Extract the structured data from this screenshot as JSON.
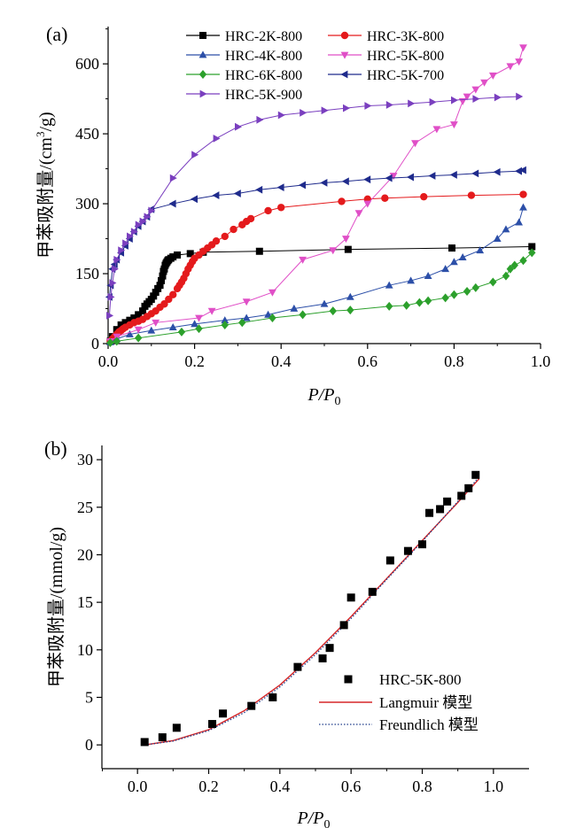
{
  "chart_data": [
    {
      "panel_label": "(a)",
      "type": "scatter",
      "xlabel_main": "P/P",
      "xlabel_sub": "0",
      "ylabel_main": "甲苯吸附量/(cm",
      "ylabel_sup": "3",
      "ylabel_end": "/g)",
      "xlim": [
        0,
        1.0
      ],
      "ylim": [
        0,
        680
      ],
      "xticks": [
        0.0,
        0.2,
        0.4,
        0.6,
        0.8,
        1.0
      ],
      "xtick_labels": [
        "0.0",
        "0.2",
        "0.4",
        "0.6",
        "0.8",
        "1.0"
      ],
      "yticks": [
        0,
        150,
        300,
        450,
        600
      ],
      "ytick_labels": [
        "0",
        "150",
        "300",
        "450",
        "600"
      ],
      "series": [
        {
          "name": "HRC-2K-800",
          "color": "#000000",
          "marker": "square",
          "x": [
            0.005,
            0.01,
            0.02,
            0.03,
            0.04,
            0.05,
            0.06,
            0.07,
            0.08,
            0.085,
            0.09,
            0.095,
            0.1,
            0.105,
            0.11,
            0.115,
            0.12,
            0.123,
            0.126,
            0.128,
            0.13,
            0.132,
            0.134,
            0.136,
            0.138,
            0.14,
            0.145,
            0.15,
            0.16,
            0.19,
            0.22,
            0.35,
            0.555,
            0.795,
            0.98
          ],
          "y": [
            5,
            15,
            30,
            40,
            45,
            50,
            55,
            62,
            70,
            80,
            85,
            90,
            95,
            102,
            110,
            118,
            125,
            135,
            145,
            155,
            160,
            168,
            172,
            175,
            178,
            180,
            183,
            186,
            190,
            193,
            196,
            198,
            202,
            205,
            208
          ]
        },
        {
          "name": "HRC-3K-800",
          "color": "#e41a1c",
          "marker": "circle",
          "x": [
            0.005,
            0.01,
            0.015,
            0.02,
            0.025,
            0.03,
            0.035,
            0.04,
            0.05,
            0.06,
            0.07,
            0.08,
            0.09,
            0.1,
            0.11,
            0.12,
            0.13,
            0.14,
            0.15,
            0.16,
            0.165,
            0.17,
            0.175,
            0.18,
            0.185,
            0.19,
            0.195,
            0.2,
            0.21,
            0.22,
            0.23,
            0.24,
            0.25,
            0.27,
            0.29,
            0.31,
            0.32,
            0.33,
            0.37,
            0.4,
            0.54,
            0.6,
            0.64,
            0.73,
            0.84,
            0.96
          ],
          "y": [
            5,
            10,
            15,
            20,
            25,
            28,
            32,
            35,
            40,
            45,
            48,
            52,
            58,
            64,
            70,
            78,
            85,
            95,
            105,
            118,
            125,
            132,
            140,
            150,
            160,
            168,
            176,
            183,
            190,
            198,
            205,
            212,
            220,
            230,
            245,
            255,
            262,
            268,
            285,
            292,
            305,
            310,
            312,
            315,
            318,
            320
          ]
        },
        {
          "name": "HRC-4K-800",
          "color": "#2c4fa8",
          "marker": "triangle-up",
          "x": [
            0.005,
            0.02,
            0.05,
            0.1,
            0.15,
            0.2,
            0.27,
            0.32,
            0.37,
            0.43,
            0.5,
            0.56,
            0.65,
            0.7,
            0.74,
            0.78,
            0.8,
            0.82,
            0.86,
            0.9,
            0.92,
            0.95,
            0.96
          ],
          "y": [
            3,
            10,
            20,
            28,
            35,
            42,
            50,
            55,
            62,
            75,
            85,
            100,
            125,
            135,
            145,
            160,
            175,
            185,
            200,
            225,
            245,
            260,
            292
          ]
        },
        {
          "name": "HRC-5K-800",
          "color": "#e04fc7",
          "marker": "triangle-down",
          "x": [
            0.005,
            0.02,
            0.07,
            0.11,
            0.21,
            0.24,
            0.32,
            0.38,
            0.45,
            0.52,
            0.55,
            0.58,
            0.6,
            0.66,
            0.71,
            0.76,
            0.8,
            0.82,
            0.83,
            0.85,
            0.87,
            0.89,
            0.93,
            0.95,
            0.96
          ],
          "y": [
            5,
            15,
            30,
            45,
            55,
            70,
            90,
            110,
            180,
            200,
            225,
            280,
            300,
            360,
            430,
            460,
            470,
            520,
            530,
            545,
            560,
            575,
            595,
            605,
            635
          ]
        },
        {
          "name": "HRC-6K-800",
          "color": "#2ca02c",
          "marker": "diamond",
          "x": [
            0.005,
            0.02,
            0.07,
            0.17,
            0.21,
            0.27,
            0.31,
            0.38,
            0.45,
            0.52,
            0.56,
            0.65,
            0.69,
            0.72,
            0.74,
            0.78,
            0.8,
            0.83,
            0.85,
            0.89,
            0.92,
            0.93,
            0.94,
            0.96,
            0.98
          ],
          "y": [
            2,
            5,
            12,
            25,
            32,
            40,
            45,
            55,
            62,
            70,
            72,
            80,
            82,
            88,
            92,
            98,
            105,
            112,
            120,
            132,
            145,
            160,
            168,
            178,
            195
          ]
        },
        {
          "name": "HRC-5K-700",
          "color": "#1f2b8c",
          "marker": "triangle-left",
          "x": [
            0.003,
            0.006,
            0.01,
            0.015,
            0.02,
            0.03,
            0.04,
            0.05,
            0.06,
            0.07,
            0.08,
            0.09,
            0.1,
            0.15,
            0.2,
            0.25,
            0.3,
            0.35,
            0.4,
            0.45,
            0.5,
            0.55,
            0.6,
            0.65,
            0.7,
            0.75,
            0.8,
            0.85,
            0.9,
            0.95,
            0.96
          ],
          "y": [
            100,
            125,
            160,
            170,
            180,
            195,
            210,
            225,
            240,
            252,
            262,
            272,
            288,
            300,
            310,
            318,
            322,
            330,
            335,
            340,
            345,
            348,
            352,
            355,
            357,
            360,
            362,
            365,
            368,
            370,
            372
          ]
        },
        {
          "name": "HRC-5K-900",
          "color": "#7a3fbf",
          "marker": "triangle-right",
          "x": [
            0.003,
            0.006,
            0.01,
            0.015,
            0.02,
            0.03,
            0.04,
            0.05,
            0.06,
            0.07,
            0.08,
            0.09,
            0.1,
            0.15,
            0.2,
            0.25,
            0.3,
            0.35,
            0.4,
            0.45,
            0.5,
            0.55,
            0.6,
            0.65,
            0.7,
            0.75,
            0.8,
            0.85,
            0.9,
            0.95
          ],
          "y": [
            60,
            100,
            130,
            160,
            180,
            200,
            215,
            230,
            240,
            255,
            262,
            272,
            285,
            355,
            405,
            440,
            465,
            480,
            490,
            495,
            500,
            505,
            510,
            512,
            515,
            518,
            522,
            525,
            528,
            530
          ]
        }
      ]
    },
    {
      "panel_label": "(b)",
      "type": "scatter",
      "xlabel_main": "P/P",
      "xlabel_sub": "0",
      "ylabel_main": "甲苯吸附量/(mmol/g)",
      "xlim": [
        -0.1,
        1.1
      ],
      "ylim": [
        -2.5,
        31.5
      ],
      "xticks": [
        0.0,
        0.2,
        0.4,
        0.6,
        0.8,
        1.0
      ],
      "xtick_labels": [
        "0.0",
        "0.2",
        "0.4",
        "0.6",
        "0.8",
        "1.0"
      ],
      "yticks": [
        0,
        5,
        10,
        15,
        20,
        25,
        30
      ],
      "ytick_labels": [
        "0",
        "5",
        "10",
        "15",
        "20",
        "25",
        "30"
      ],
      "series": [
        {
          "name": "HRC-5K-800",
          "color": "#000000",
          "marker": "square",
          "x": [
            0.02,
            0.07,
            0.11,
            0.21,
            0.24,
            0.32,
            0.38,
            0.45,
            0.52,
            0.54,
            0.58,
            0.6,
            0.66,
            0.71,
            0.76,
            0.8,
            0.82,
            0.85,
            0.87,
            0.91,
            0.93,
            0.95
          ],
          "y": [
            0.3,
            0.8,
            1.8,
            2.2,
            3.3,
            4.1,
            5.0,
            8.2,
            9.1,
            10.2,
            12.6,
            15.5,
            16.1,
            19.4,
            20.4,
            21.1,
            24.4,
            24.8,
            25.6,
            26.2,
            27.0,
            28.4
          ]
        },
        {
          "name": "Langmuir 模型",
          "color": "#d62728",
          "line": "solid",
          "x": [
            0.02,
            0.1,
            0.2,
            0.3,
            0.4,
            0.5,
            0.6,
            0.7,
            0.8,
            0.9,
            0.96
          ],
          "y": [
            0.0,
            0.45,
            1.6,
            3.6,
            6.3,
            9.7,
            13.5,
            17.5,
            21.5,
            25.5,
            28.0
          ]
        },
        {
          "name": "Freundlich 模型",
          "color": "#1f3c8a",
          "line": "dotted",
          "x": [
            0.02,
            0.1,
            0.2,
            0.3,
            0.4,
            0.5,
            0.6,
            0.7,
            0.8,
            0.9,
            0.96
          ],
          "y": [
            0.0,
            0.4,
            1.5,
            3.4,
            6.1,
            9.5,
            13.3,
            17.4,
            21.4,
            25.6,
            28.2
          ]
        }
      ]
    }
  ]
}
